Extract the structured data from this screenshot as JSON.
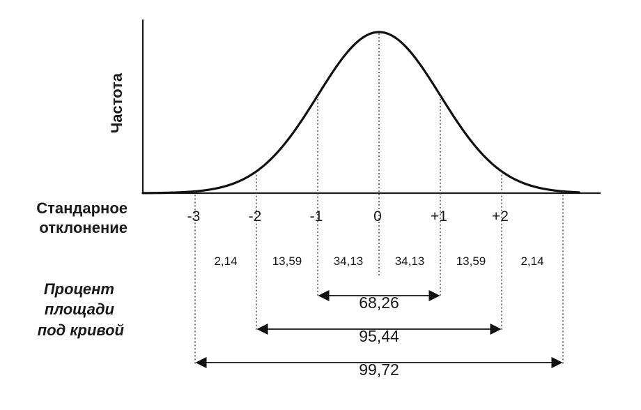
{
  "labels": {
    "y_axis": "Частота",
    "sd_line1": "Стандарное",
    "sd_line2": "отклонение",
    "pct_line1": "Процент",
    "pct_line2": "площади",
    "pct_line3": "под кривой"
  },
  "ticks": [
    "-3",
    "-2",
    "-1",
    "0",
    "+1",
    "+2"
  ],
  "segments": [
    {
      "from": -3,
      "to": -2,
      "value": "2,14"
    },
    {
      "from": -2,
      "to": -1,
      "value": "13,59"
    },
    {
      "from": -1,
      "to": 0,
      "value": "34,13"
    },
    {
      "from": 0,
      "to": 1,
      "value": "34,13"
    },
    {
      "from": 1,
      "to": 2,
      "value": "13,59"
    },
    {
      "from": 2,
      "to": 3,
      "value": "2,14"
    }
  ],
  "spans": [
    {
      "from": -1,
      "to": 1,
      "value": "68,26"
    },
    {
      "from": -2,
      "to": 2,
      "value": "95,44"
    },
    {
      "from": -3,
      "to": 3,
      "value": "99,72"
    }
  ]
}
